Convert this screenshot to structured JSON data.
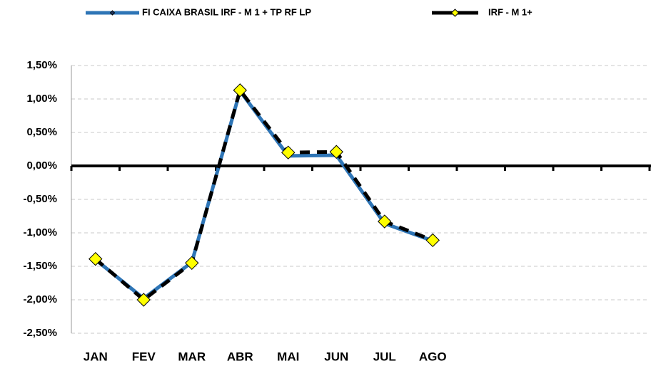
{
  "chart_data": {
    "type": "line",
    "categories": [
      "JAN",
      "FEV",
      "MAR",
      "ABR",
      "MAI",
      "JUN",
      "JUL",
      "AGO",
      null,
      null,
      null,
      null
    ],
    "series": [
      {
        "name": "FI CAIXA BRASIL IRF - M 1 + TP RF LP",
        "color": "#2e75b6",
        "marker_color": "#1f3864",
        "values": [
          -1.4,
          -1.98,
          -1.44,
          1.12,
          0.15,
          0.16,
          -0.86,
          -1.12,
          null,
          null,
          null,
          null
        ]
      },
      {
        "name": "IRF - M 1+",
        "color": "#000000",
        "marker_color": "#ffff00",
        "values": [
          -1.39,
          -2.0,
          -1.45,
          1.13,
          0.2,
          0.21,
          -0.83,
          -1.11,
          null,
          null,
          null,
          null
        ]
      }
    ],
    "ylim": [
      -2.5,
      1.5
    ],
    "yticks": [
      {
        "value": -2.5,
        "label": "-2,50%"
      },
      {
        "value": -2.0,
        "label": "-2,00%"
      },
      {
        "value": -1.5,
        "label": "-1,50%"
      },
      {
        "value": -1.0,
        "label": "-1,00%"
      },
      {
        "value": -0.5,
        "label": "-0,50%"
      },
      {
        "value": 0,
        "label": "0,00%"
      },
      {
        "value": 0.5,
        "label": "0,50%"
      },
      {
        "value": 1.0,
        "label": "1,00%"
      },
      {
        "value": 1.5,
        "label": "1,50%"
      }
    ],
    "grid": true,
    "legend": "top"
  }
}
